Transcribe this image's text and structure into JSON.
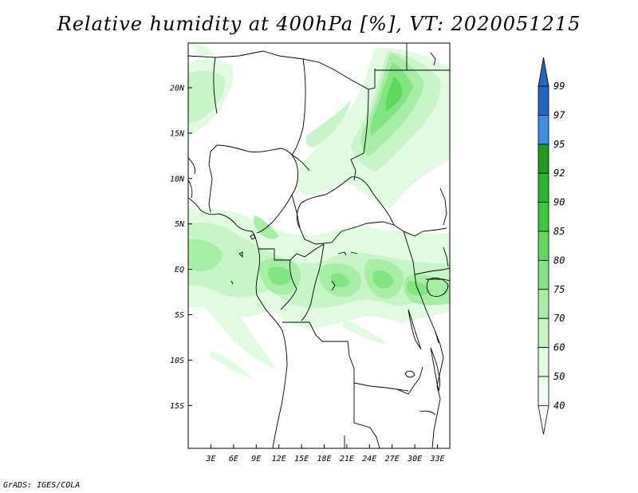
{
  "title": "Relative humidity at 400hPa [%], VT: 2020051215",
  "credit": "GrADS: IGES/COLA",
  "map": {
    "lat_ticks": [
      "20N",
      "15N",
      "10N",
      "5N",
      "EQ",
      "5S",
      "10S",
      "15S"
    ],
    "lon_ticks": [
      "3E",
      "6E",
      "9E",
      "12E",
      "15E",
      "18E",
      "21E",
      "24E",
      "27E",
      "30E",
      "33E"
    ]
  },
  "legend": {
    "levels": [
      "99",
      "97",
      "95",
      "92",
      "90",
      "85",
      "80",
      "75",
      "70",
      "60",
      "50",
      "40"
    ],
    "colors": {
      "99": "#1f67c2",
      "97": "#3c8ee8",
      "95": "#1a9e1a",
      "92": "#2ab82a",
      "90": "#3cc83c",
      "85": "#5fd85f",
      "80": "#82e582",
      "75": "#a6eea6",
      "70": "#c7f5c7",
      "60": "#e2fae2",
      "50": "#f0fdf0",
      "40": "#ffffff"
    }
  }
}
